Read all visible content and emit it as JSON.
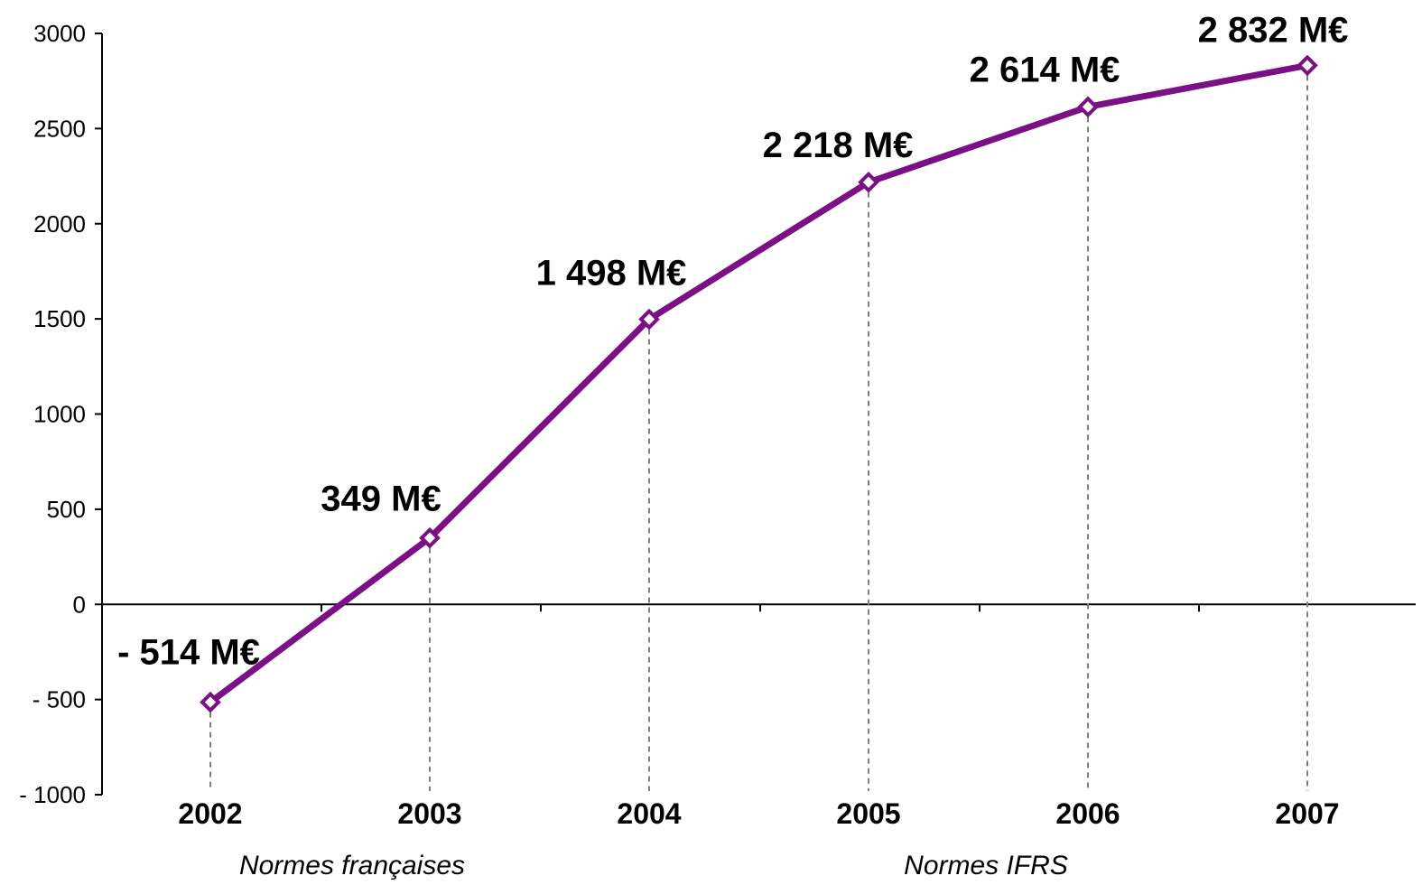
{
  "chart_data": {
    "type": "line",
    "x": [
      "2002",
      "2003",
      "2004",
      "2005",
      "2006",
      "2007"
    ],
    "series": [
      {
        "values": [
          -514,
          349,
          1498,
          2218,
          2614,
          2832
        ]
      }
    ],
    "data_labels": [
      "- 514 M€",
      "349 M€",
      "1 498 M€",
      "2 218 M€",
      "2 614 M€",
      "2 832 M€"
    ],
    "y_ticks": [
      3000,
      2500,
      2000,
      1500,
      1000,
      500,
      0,
      -500,
      -1000
    ],
    "y_tick_labels": [
      "3000",
      "2500",
      "2000",
      "1500",
      "1000",
      "500",
      "0",
      "- 500",
      "- 1000"
    ],
    "ylim": [
      -1000,
      3000
    ],
    "grid": false,
    "drop_lines": true,
    "annotations": [
      "Normes françaises",
      "Normes IFRS"
    ],
    "colors": {
      "line": "#7a0f86",
      "marker_fill": "#ffffff",
      "axis": "#000000",
      "drop_line": "#808080"
    }
  }
}
